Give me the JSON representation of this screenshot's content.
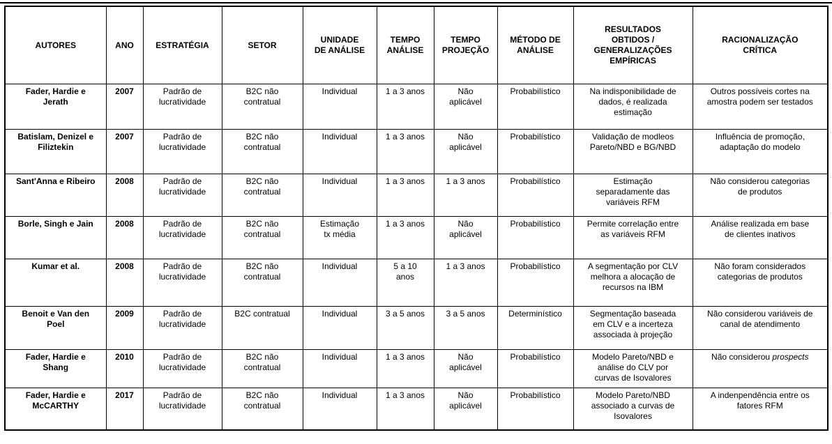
{
  "table": {
    "columns": [
      "AUTORES",
      "ANO",
      "ESTRATÉGIA",
      "SETOR",
      "UNIDADE\nDE ANÁLISE",
      "TEMPO\nANÁLISE",
      "TEMPO\nPROJEÇÃO",
      "MÉTODO DE\nANÁLISE",
      "RESULTADOS\nOBTIDOS /\nGENERALIZAÇÕES\nEMPÍRICAS",
      "RACIONALIZAÇÃO\nCRÍTICA"
    ],
    "rows": [
      [
        "Fader, Hardie e\nJerath",
        "2007",
        "Padrão de\nlucratividade",
        "B2C não\ncontratual",
        "Individual",
        "1 a 3 anos",
        "Não\naplicável",
        "Probabilístico",
        "Na indisponibilidade de\ndados, é realizada\nestimação",
        "Outros possíveis cortes na\namostra podem ser testados"
      ],
      [
        "Batislam, Denizel e\nFiliztekin",
        "2007",
        "Padrão de\nlucratividade",
        "B2C não\ncontratual",
        "Individual",
        "1 a 3 anos",
        "Não\naplicável",
        "Probabilístico",
        "Validação de modleos\nPareto/NBD e BG/NBD",
        "Influência de promoção,\nadaptação do modelo"
      ],
      [
        "Sant'Anna e Ribeiro",
        "2008",
        "Padrão de\nlucratividade",
        "B2C não\ncontratual",
        "Individual",
        "1 a 3 anos",
        "1 a 3 anos",
        "Probabilístico",
        "Estimação\nseparadamente das\nvariáveis RFM",
        "Não considerou categorias\nde produtos"
      ],
      [
        "Borle, Singh e Jain",
        "2008",
        "Padrão de\nlucratividade",
        "B2C não\ncontratual",
        "Estimação\ntx média",
        "1 a 3 anos",
        "Não\naplicável",
        "Probabilístico",
        "Permite correlação entre\nas variáveis RFM",
        "Análise realizada em base\nde clientes inativos"
      ],
      [
        "Kumar et al.",
        "2008",
        "Padrão de\nlucratividade",
        "B2C não\ncontratual",
        "Individual",
        "5 a 10\nanos",
        "1 a 3 anos",
        "Probabilístico",
        "A segmentação por CLV\nmelhora a alocação de\nrecursos na IBM",
        "Não foram considerados\ncategorias de produtos"
      ],
      [
        "Benoit e Van den\nPoel",
        "2009",
        "Padrão de\nlucratividade",
        "B2C contratual",
        "Individual",
        "3 a 5 anos",
        "3 a 5 anos",
        "Determinístico",
        "Segmentação baseada\nem CLV e a incerteza\nassociada à projeção",
        "Não considerou variáveis de\ncanal de atendimento"
      ],
      [
        "Fader, Hardie e\nShang",
        "2010",
        "Padrão de\nlucratividade",
        "B2C não\ncontratual",
        "Individual",
        "1 a 3 anos",
        "Não\naplicável",
        "Probabilístico",
        "Modelo Pareto/NBD e\nanálise do CLV por\ncurvas de Isovalores",
        "Não considerou *prospects*"
      ],
      [
        "Fader, Hardie e\nMcCARTHY",
        "2017",
        "Padrão de\nlucratividade",
        "B2C não\ncontratual",
        "Individual",
        "1 a 3 anos",
        "Não\naplicável",
        "Probabilístico",
        "Modelo Pareto/NBD\nassociado a curvas de\nIsovalores",
        "A indenpendência entre os\nfatores RFM"
      ]
    ]
  }
}
